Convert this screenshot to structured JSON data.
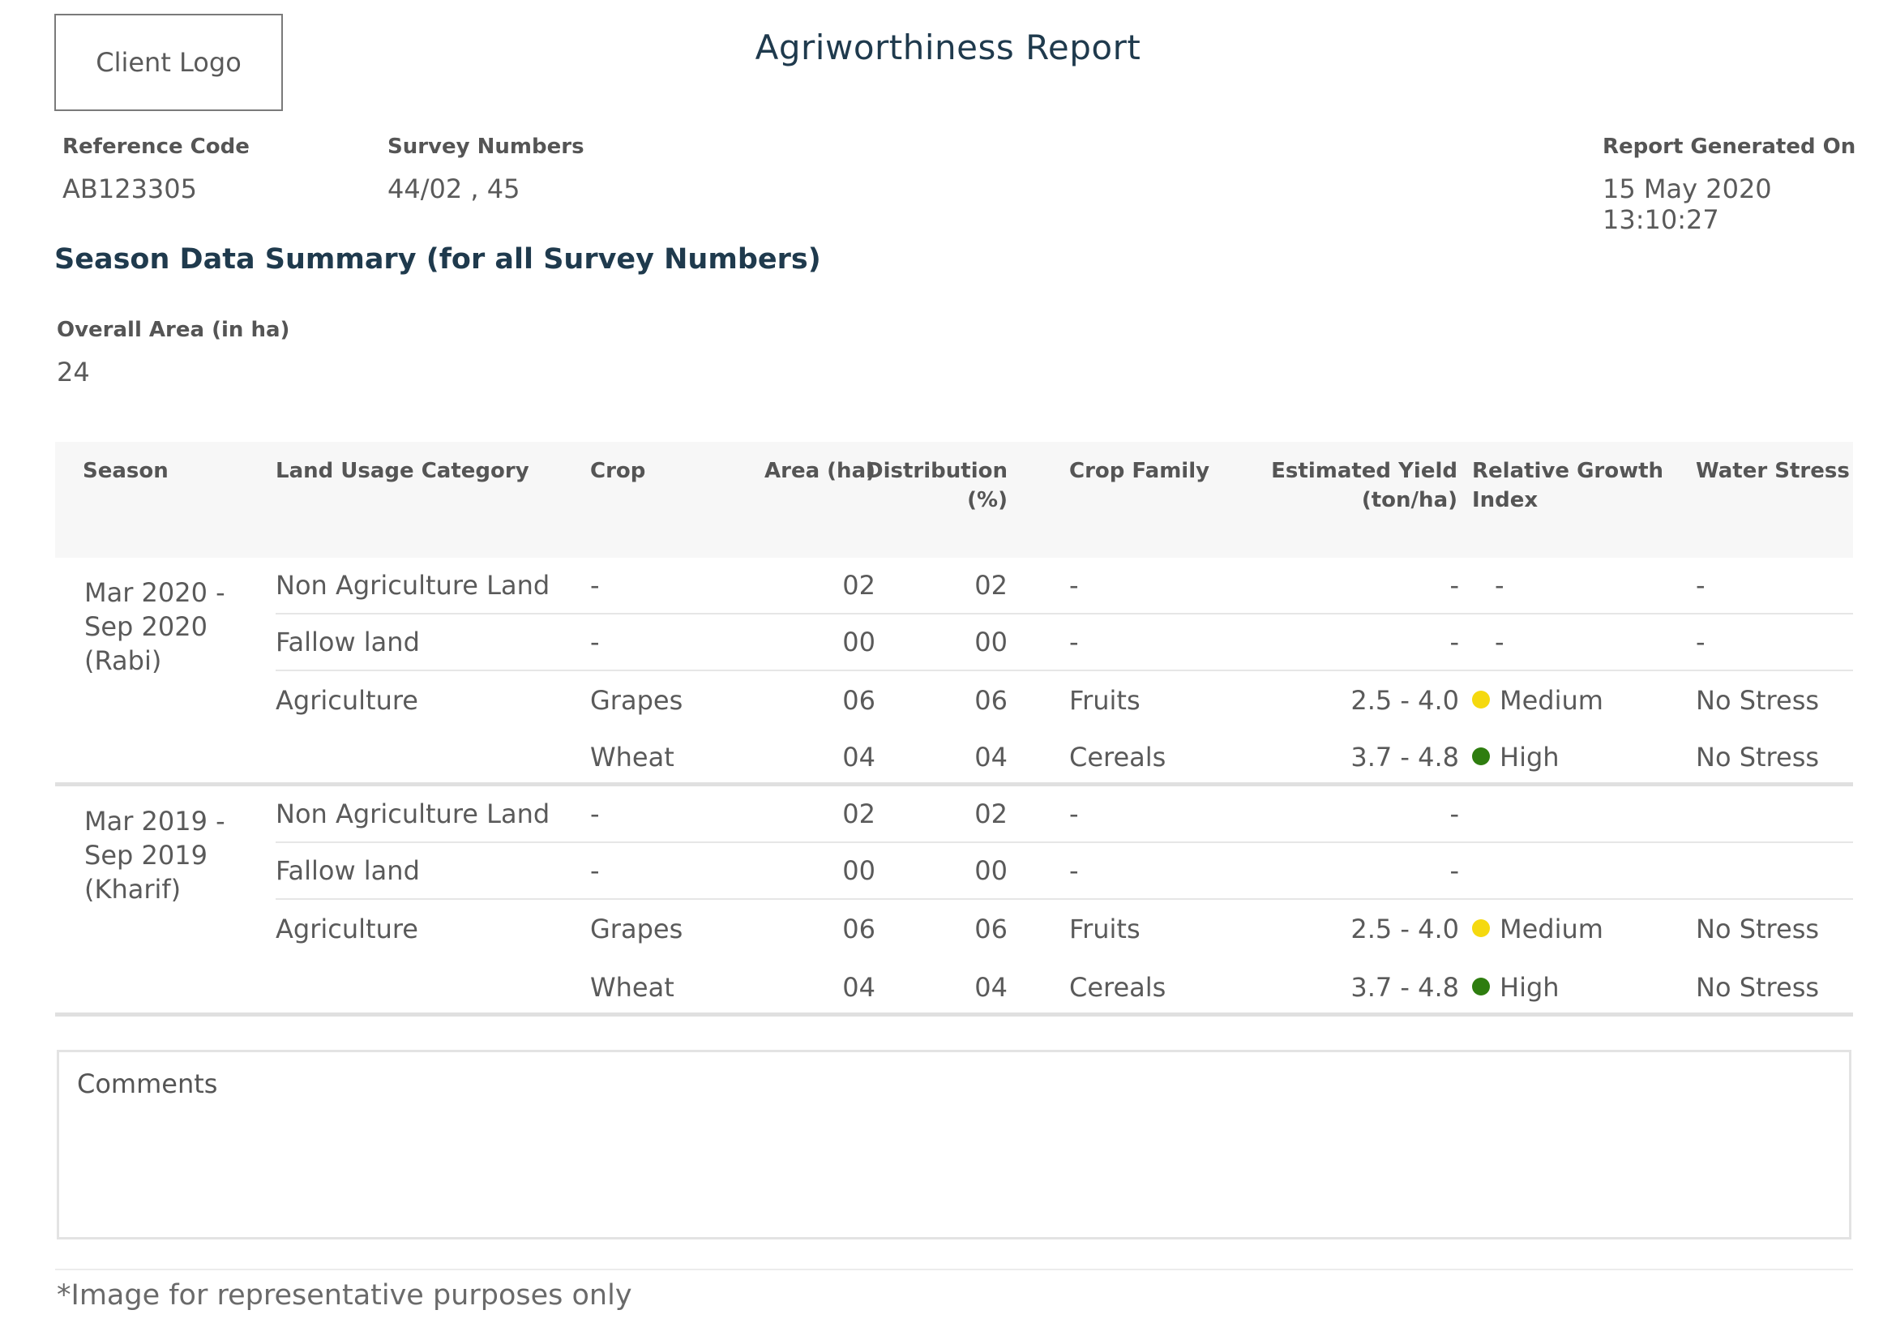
{
  "header": {
    "logo_text": "Client Logo",
    "title": "Agriworthiness Report"
  },
  "meta": {
    "reference_code": {
      "label": "Reference Code",
      "value": "AB123305"
    },
    "survey_numbers": {
      "label": "Survey Numbers",
      "value": "44/02 , 45"
    },
    "report_generated": {
      "label": "Report Generated On",
      "value": "15 May 2020 13:10:27"
    }
  },
  "summary": {
    "title": "Season Data Summary (for all Survey Numbers)",
    "overall_area_label": "Overall Area (in ha)",
    "overall_area_value": "24"
  },
  "table": {
    "headers": {
      "season": "Season",
      "land_usage": "Land Usage Category",
      "crop": "Crop",
      "area": "Area (ha)",
      "distribution_1": "Distribution",
      "distribution_2": "(%)",
      "crop_family": "Crop Family",
      "yield_1": "Estimated Yield",
      "yield_2": "(ton/ha)",
      "growth_1": "Relative Growth",
      "growth_2": "Index",
      "water_stress": "Water Stress"
    },
    "seasons": [
      {
        "label_1": "Mar 2020 -",
        "label_2": "Sep 2020",
        "label_3": "(Rabi)",
        "rows": [
          {
            "land": "Non Agriculture Land",
            "crop": "-",
            "area": "02",
            "dist": "02",
            "family": "-",
            "yield": "-",
            "growth": "-",
            "growth_color": "",
            "stress": "-"
          },
          {
            "land": "Fallow land",
            "crop": "-",
            "area": "00",
            "dist": "00",
            "family": "-",
            "yield": "-",
            "growth": "-",
            "growth_color": "",
            "stress": "-"
          },
          {
            "land": "Agriculture",
            "crop": "Grapes",
            "area": "06",
            "dist": "06",
            "family": "Fruits",
            "yield": "2.5 - 4.0",
            "growth": "Medium",
            "growth_color": "#f5d90f",
            "stress": "No Stress"
          },
          {
            "land": "",
            "crop": "Wheat",
            "area": "04",
            "dist": "04",
            "family": "Cereals",
            "yield": "3.7 - 4.8",
            "growth": "High",
            "growth_color": "#2e7d0f",
            "stress": "No Stress"
          }
        ]
      },
      {
        "label_1": "Mar 2019 -",
        "label_2": "Sep 2019",
        "label_3": "(Kharif)",
        "rows": [
          {
            "land": "Non Agriculture Land",
            "crop": "-",
            "area": "02",
            "dist": "02",
            "family": "-",
            "yield": "-",
            "growth": "",
            "growth_color": "",
            "stress": ""
          },
          {
            "land": "Fallow land",
            "crop": "-",
            "area": "00",
            "dist": "00",
            "family": "-",
            "yield": "-",
            "growth": "",
            "growth_color": "",
            "stress": ""
          },
          {
            "land": "Agriculture",
            "crop": "Grapes",
            "area": "06",
            "dist": "06",
            "family": "Fruits",
            "yield": "2.5 - 4.0",
            "growth": "Medium",
            "growth_color": "#f5d90f",
            "stress": "No Stress"
          },
          {
            "land": "",
            "crop": "Wheat",
            "area": "04",
            "dist": "04",
            "family": "Cereals",
            "yield": "3.7 - 4.8",
            "growth": "High",
            "growth_color": "#2e7d0f",
            "stress": "No Stress"
          }
        ]
      }
    ]
  },
  "comments": {
    "label": "Comments"
  },
  "footnote": "*Image for representative purposes only"
}
